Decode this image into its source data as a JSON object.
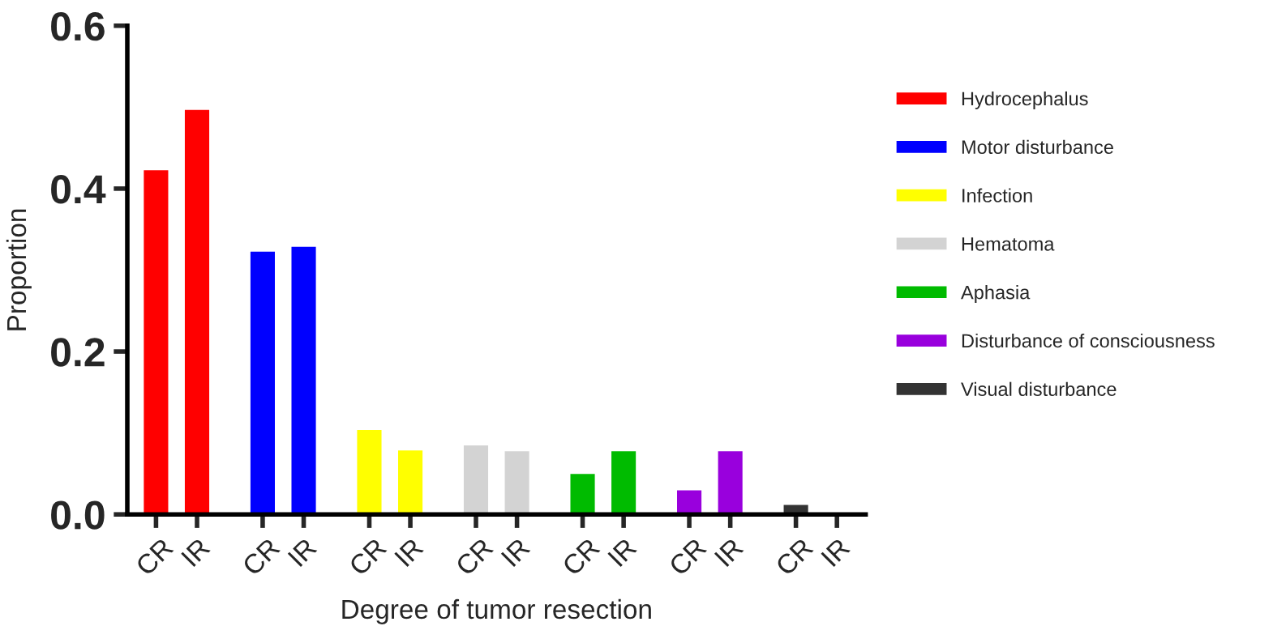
{
  "chart_data": {
    "type": "bar",
    "xlabel": "Degree of tumor resection",
    "ylabel": "Proportion",
    "categories": [
      "CR",
      "IR",
      "CR",
      "IR",
      "CR",
      "IR",
      "CR",
      "IR",
      "CR",
      "IR",
      "CR",
      "IR",
      "CR",
      "IR"
    ],
    "series": [
      {
        "name": "Hydrocephalus",
        "color": "#ff0000",
        "values": [
          0.424,
          0.498,
          null,
          null,
          null,
          null,
          null,
          null,
          null,
          null,
          null,
          null,
          null,
          null
        ]
      },
      {
        "name": "Motor disturbance",
        "color": "#0000ff",
        "values": [
          null,
          null,
          0.324,
          0.33,
          null,
          null,
          null,
          null,
          null,
          null,
          null,
          null,
          null,
          null
        ]
      },
      {
        "name": "Infection",
        "color": "#ffff00",
        "values": [
          null,
          null,
          null,
          null,
          0.105,
          0.08,
          null,
          null,
          null,
          null,
          null,
          null,
          null,
          null
        ]
      },
      {
        "name": "Hematoma",
        "color": "#d3d3d3",
        "values": [
          null,
          null,
          null,
          null,
          null,
          null,
          0.086,
          0.079,
          null,
          null,
          null,
          null,
          null,
          null
        ]
      },
      {
        "name": "Aphasia",
        "color": "#00bb00",
        "values": [
          null,
          null,
          null,
          null,
          null,
          null,
          null,
          null,
          0.051,
          0.079,
          null,
          null,
          null,
          null
        ]
      },
      {
        "name": "Disturbance of consciousness",
        "color": "#9900dd",
        "values": [
          null,
          null,
          null,
          null,
          null,
          null,
          null,
          null,
          null,
          null,
          0.031,
          0.079,
          null,
          null
        ]
      },
      {
        "name": "Visual disturbance",
        "color": "#333333",
        "values": [
          null,
          null,
          null,
          null,
          null,
          null,
          null,
          null,
          null,
          null,
          null,
          null,
          0.013,
          null
        ]
      }
    ],
    "ylim": [
      0,
      0.6
    ],
    "yticks": [
      {
        "value": 0,
        "label": "0.0"
      },
      {
        "value": 0.2,
        "label": "0.2"
      },
      {
        "value": 0.4,
        "label": "0.4"
      },
      {
        "value": 0.6,
        "label": "0.6"
      }
    ],
    "grid": false,
    "legend": "right"
  }
}
